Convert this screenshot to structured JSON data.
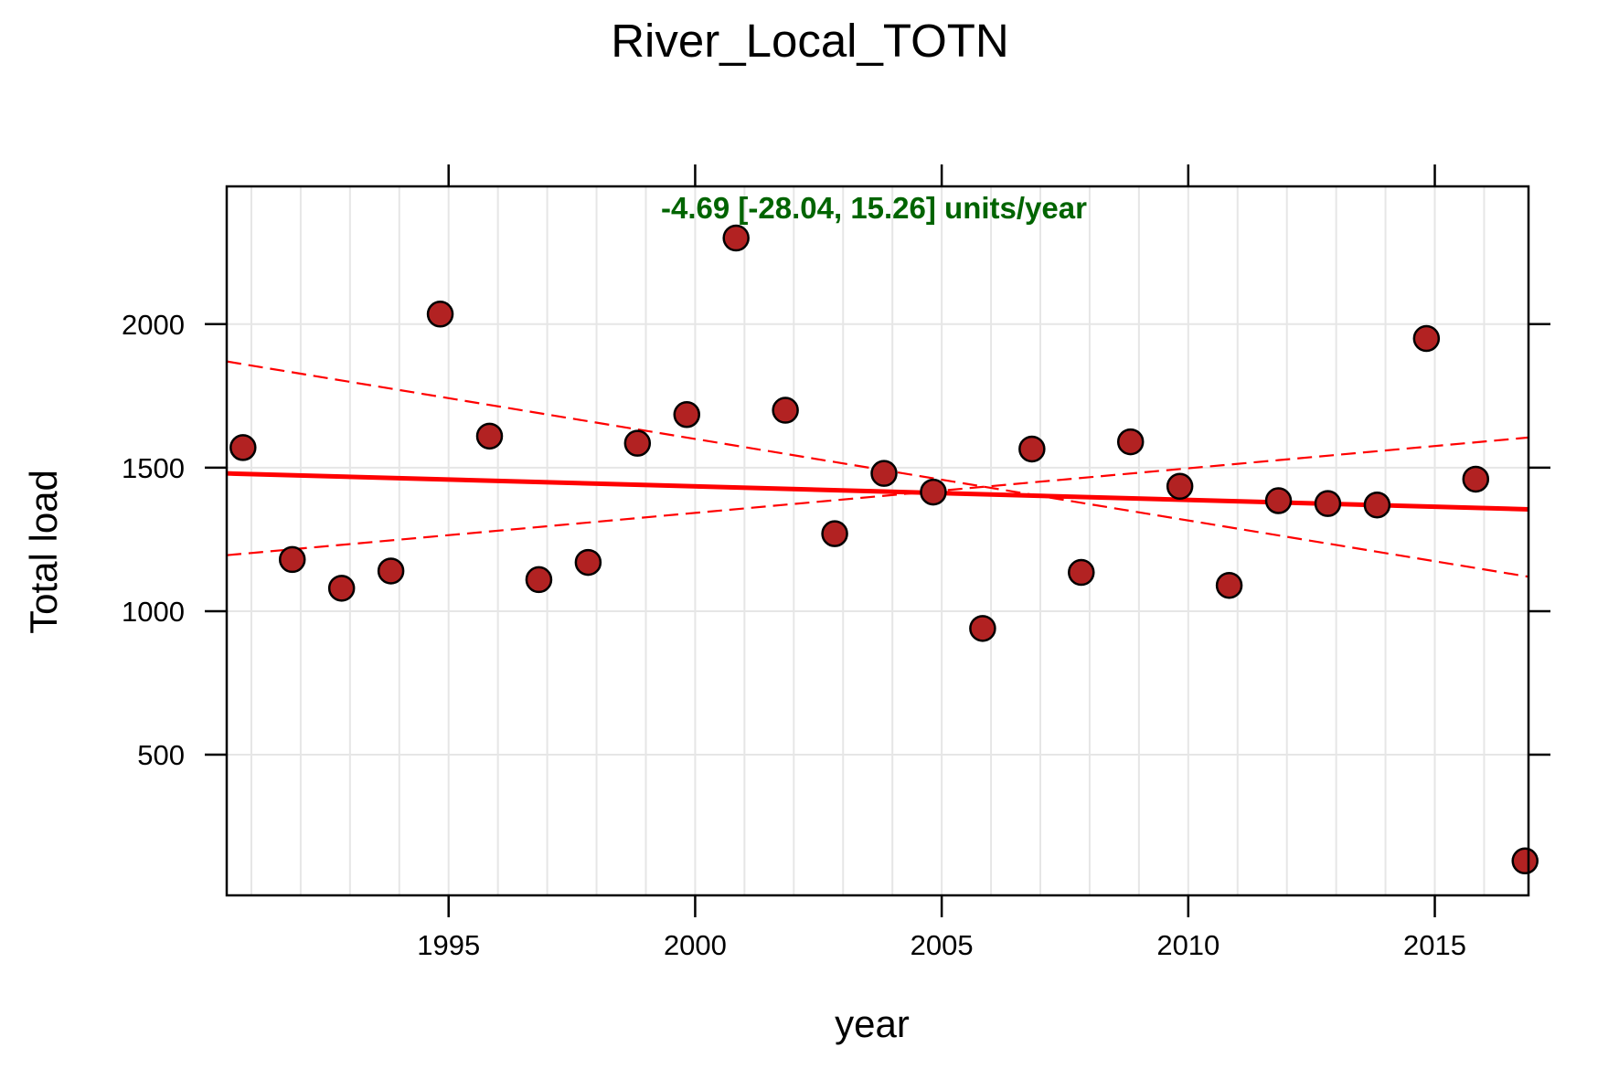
{
  "chart_data": {
    "type": "scatter",
    "title": "River_Local_TOTN",
    "xlabel": "year",
    "ylabel": "Total load",
    "xlim": [
      1990.5,
      2016.9
    ],
    "ylim": [
      10,
      2480
    ],
    "x_ticks": [
      1995,
      2000,
      2005,
      2010,
      2015
    ],
    "x_tick_labels": [
      "1995",
      "2000",
      "2005",
      "2010",
      "2015"
    ],
    "y_ticks": [
      500,
      1000,
      1500,
      2000
    ],
    "y_tick_labels": [
      "500",
      "1000",
      "1500",
      "2000"
    ],
    "grid": true,
    "annotation": "-4.69 [-28.04, 15.26] units/year",
    "colors": {
      "point_fill": "#b22222",
      "point_stroke": "#000000",
      "trend": "#ff0000",
      "annotation": "#006400",
      "grid": "#e6e6e6"
    },
    "points": {
      "x": [
        1990.83,
        1991.83,
        1992.83,
        1993.83,
        1994.83,
        1995.83,
        1996.83,
        1997.83,
        1998.83,
        1999.83,
        2000.83,
        2001.83,
        2002.83,
        2003.83,
        2004.83,
        2005.83,
        2006.83,
        2007.83,
        2008.83,
        2009.83,
        2010.83,
        2011.83,
        2012.83,
        2013.83,
        2014.83,
        2015.83,
        2016.83
      ],
      "y": [
        1570,
        1180,
        1080,
        1140,
        2035,
        1610,
        1110,
        1170,
        1585,
        1685,
        2300,
        1700,
        1270,
        1480,
        1415,
        940,
        1565,
        1135,
        1590,
        1435,
        1090,
        1385,
        1375,
        1370,
        1950,
        1460,
        130
      ]
    },
    "trend": {
      "x": [
        1990.5,
        2016.9
      ],
      "y": [
        1480,
        1355
      ]
    },
    "ci_upper": {
      "x": [
        1990.5,
        2016.9
      ],
      "y": [
        1870,
        1120
      ]
    },
    "ci_lower": {
      "x": [
        1990.5,
        2016.9
      ],
      "y": [
        1195,
        1605
      ]
    }
  }
}
